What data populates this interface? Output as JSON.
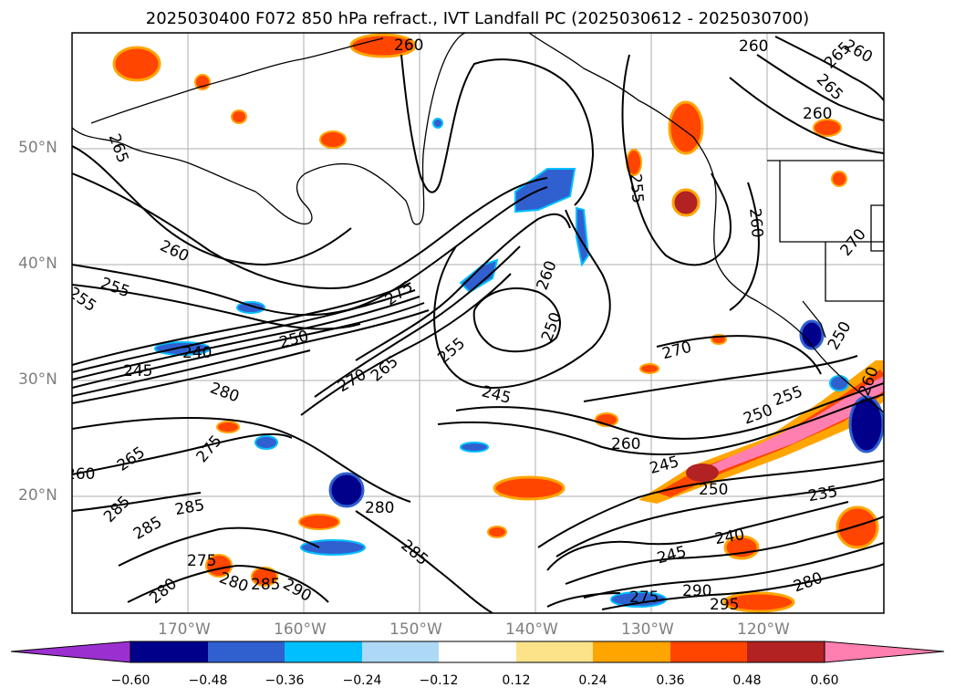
{
  "title": "2025030400 F072 850 hPa refract., IVT Landfall PC (2025030612 - 2025030700)",
  "lat_labels": [
    "50°N",
    "40°N",
    "30°N",
    "20°N"
  ],
  "lon_labels": [
    "170°W",
    "160°W",
    "150°W",
    "140°W",
    "130°W",
    "120°W"
  ],
  "colorbar": {
    "ticks": [
      "−0.60",
      "−0.48",
      "−0.36",
      "−0.24",
      "−0.12",
      "0.12",
      "0.24",
      "0.36",
      "0.48",
      "0.60"
    ],
    "colors": {
      "under": "#9b30d0",
      "bins": [
        "#00008b",
        "#3060d0",
        "#00bfff",
        "#add8f6",
        "#ffffff",
        "#fce38a",
        "#ffa500",
        "#ff4500",
        "#b22222",
        "#ff80b0"
      ],
      "over": "#ff80b0"
    }
  },
  "contour_labels": [
    "260",
    "260",
    "265",
    "260",
    "265",
    "265",
    "255",
    "260",
    "260",
    "255",
    "255",
    "260",
    "275",
    "260",
    "250",
    "240",
    "245",
    "250",
    "280",
    "255",
    "270",
    "265",
    "245",
    "270",
    "260",
    "250",
    "255",
    "260",
    "245",
    "250",
    "235",
    "275",
    "265",
    "285",
    "285",
    "285",
    "280",
    "275",
    "280",
    "285",
    "290",
    "280",
    "240",
    "245",
    "275",
    "290",
    "295",
    "280",
    "285",
    "270",
    "250",
    "260"
  ]
}
